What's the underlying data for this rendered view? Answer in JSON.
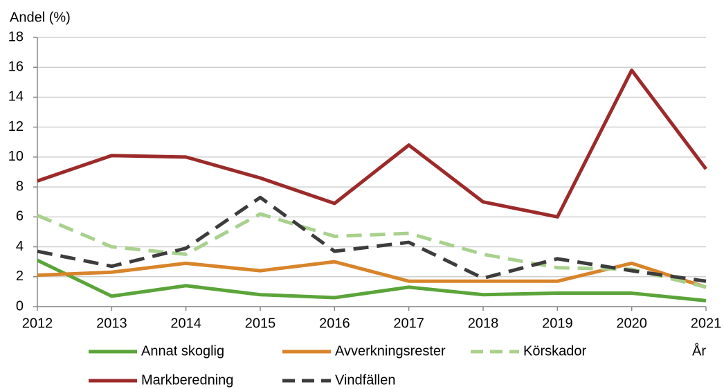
{
  "chart_data": {
    "type": "line",
    "ylabel": "Andel (%)",
    "xlabel": "År",
    "x": [
      2012,
      2013,
      2014,
      2015,
      2016,
      2017,
      2018,
      2019,
      2020,
      2021
    ],
    "xlim": [
      2012,
      2021
    ],
    "xticks": [
      2012,
      2013,
      2014,
      2015,
      2016,
      2017,
      2018,
      2019,
      2020,
      2021
    ],
    "ylim": [
      0,
      18
    ],
    "yticks": [
      0,
      2,
      4,
      6,
      8,
      10,
      12,
      14,
      16,
      18
    ],
    "grid": true,
    "series": [
      {
        "name": "Annat skoglig",
        "color": "#5ba439",
        "dashed": false,
        "values": [
          3.1,
          0.7,
          1.4,
          0.8,
          0.6,
          1.3,
          0.8,
          0.9,
          0.9,
          0.4
        ]
      },
      {
        "name": "Avverkningsrester",
        "color": "#d8842a",
        "dashed": false,
        "values": [
          2.1,
          2.3,
          2.9,
          2.4,
          3.0,
          1.7,
          1.7,
          1.7,
          2.9,
          1.3
        ]
      },
      {
        "name": "Körskador",
        "color": "#a9d18e",
        "dashed": true,
        "values": [
          6.1,
          4.0,
          3.5,
          6.2,
          4.7,
          4.9,
          3.5,
          2.6,
          2.5,
          1.3
        ]
      },
      {
        "name": "Markberedning",
        "color": "#9c2a2a",
        "dashed": false,
        "values": [
          8.4,
          10.1,
          10.0,
          8.6,
          6.9,
          10.8,
          7.0,
          6.0,
          15.8,
          9.2
        ]
      },
      {
        "name": "Vindfällen",
        "color": "#3c3c3c",
        "dashed": true,
        "values": [
          3.7,
          2.7,
          3.9,
          7.3,
          3.7,
          4.3,
          1.9,
          3.2,
          2.4,
          1.7
        ]
      }
    ]
  }
}
